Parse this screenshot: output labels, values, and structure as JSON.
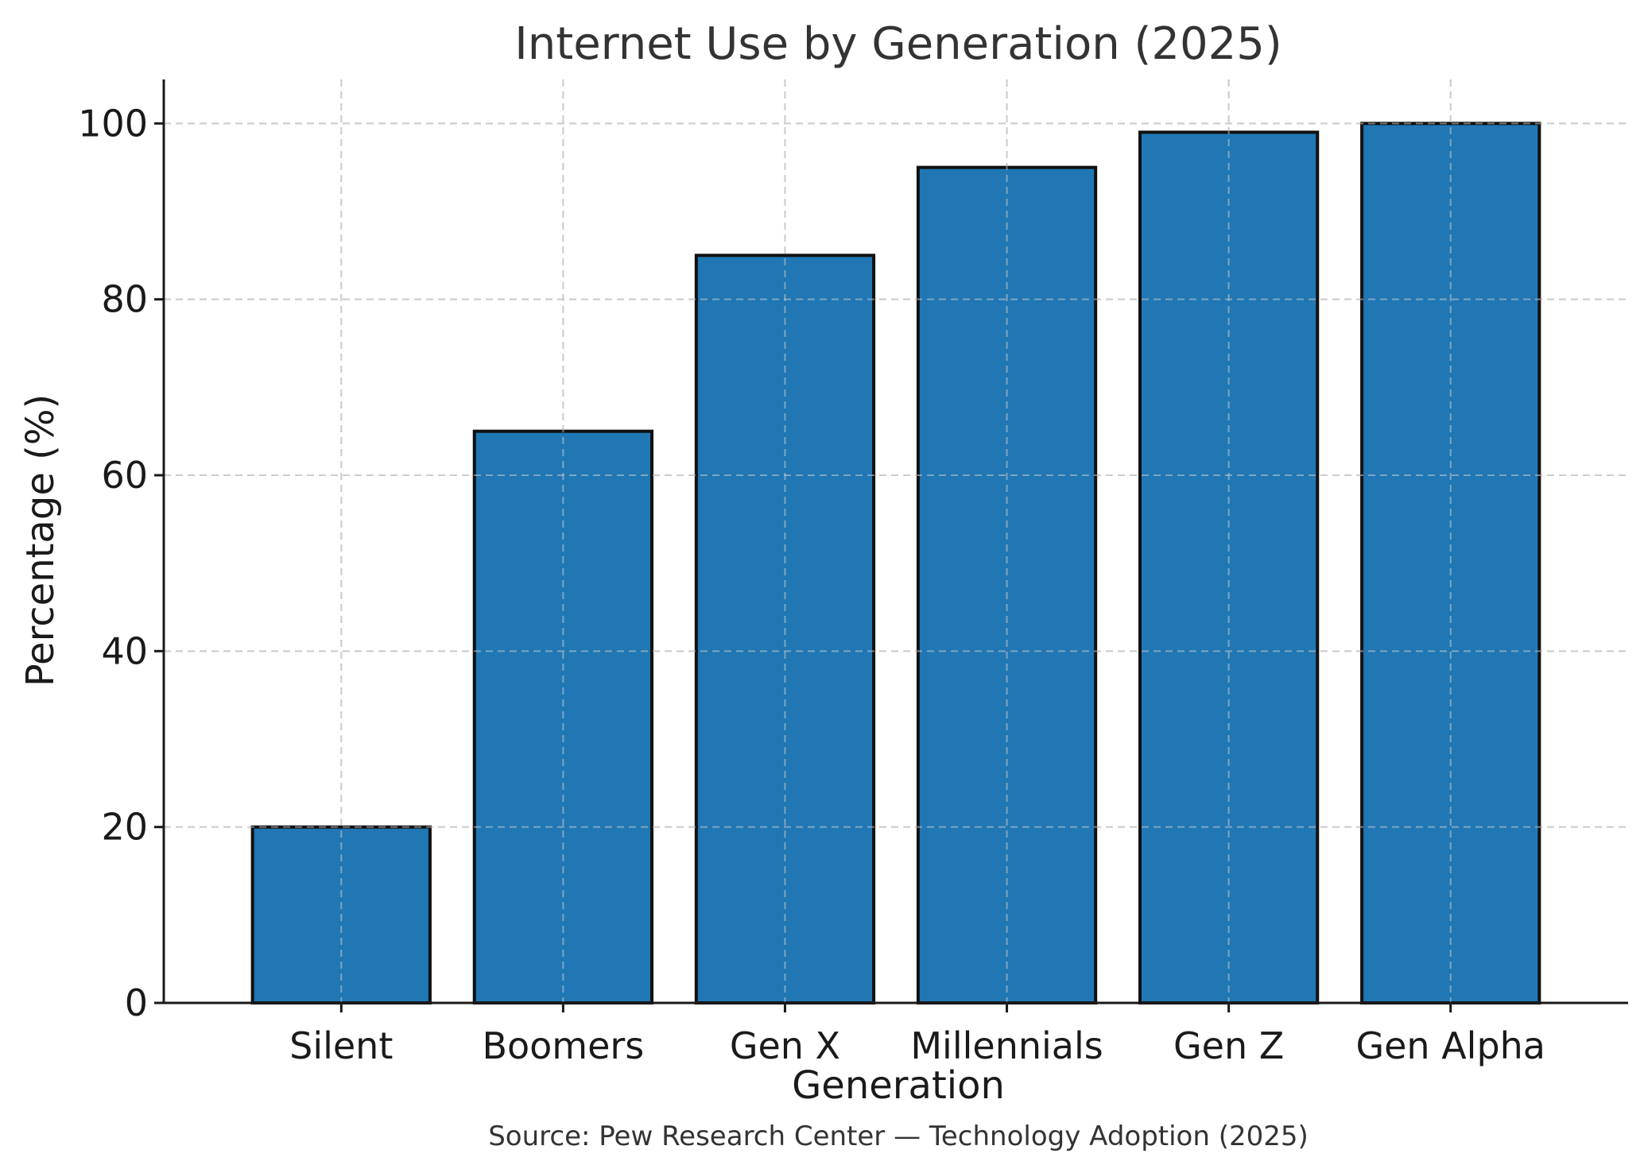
{
  "chart_data": {
    "type": "bar",
    "title": "Internet Use by Generation (2025)",
    "xlabel": "Generation",
    "ylabel": "Percentage (%)",
    "categories": [
      "Silent",
      "Boomers",
      "Gen X",
      "Millennials",
      "Gen Z",
      "Gen Alpha"
    ],
    "values": [
      20,
      65,
      85,
      95,
      99,
      100
    ],
    "ylim": [
      0,
      105
    ],
    "yticks": [
      "0",
      "20",
      "40",
      "60",
      "80",
      "100"
    ],
    "grid": true,
    "bar_color": "#2077b4",
    "source": "Source: Pew Research Center — Technology Adoption (2025)"
  }
}
